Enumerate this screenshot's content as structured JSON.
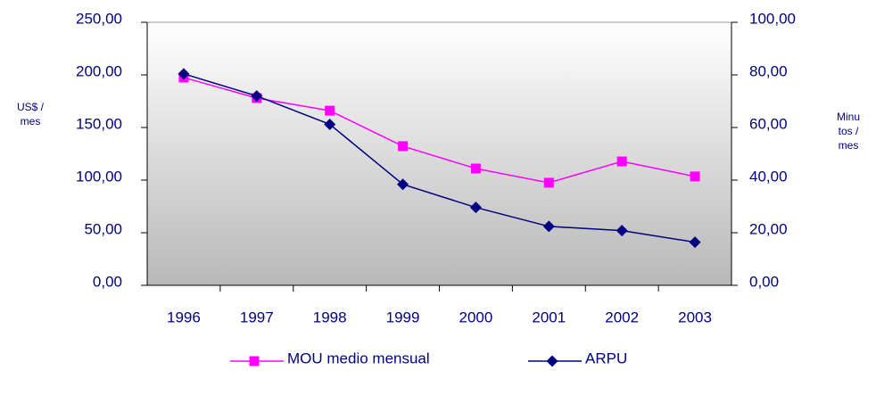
{
  "chart_data": {
    "type": "line",
    "categories": [
      "1996",
      "1997",
      "1998",
      "1999",
      "2000",
      "2001",
      "2002",
      "2003"
    ],
    "series": [
      {
        "name": "MOU medio mensual",
        "color": "#ff00ff",
        "marker": "square",
        "axis": "y2",
        "values": [
          79,
          71.2,
          66.4,
          52.9,
          44.4,
          39,
          47.1,
          41.4
        ]
      },
      {
        "name": "ARPU",
        "color": "#000080",
        "marker": "diamond",
        "values": [
          201,
          180,
          153,
          96,
          74,
          56,
          52,
          41
        ]
      }
    ],
    "y_label": [
      "US$ /",
      "mes"
    ],
    "y2_label": [
      "Minu",
      "tos /",
      "mes"
    ],
    "ylim": [
      0,
      250
    ],
    "yticks": [
      {
        "value": 0,
        "label": "0,00"
      },
      {
        "value": 50,
        "label": "50,00"
      },
      {
        "value": 100,
        "label": "100,00"
      },
      {
        "value": 150,
        "label": "150,00"
      },
      {
        "value": 200,
        "label": "200,00"
      },
      {
        "value": 250,
        "label": "250,00"
      }
    ],
    "y2lim": [
      0,
      100
    ],
    "y2ticks": [
      {
        "value": 0,
        "label": "0,00"
      },
      {
        "value": 20,
        "label": "20,00"
      },
      {
        "value": 40,
        "label": "40,00"
      },
      {
        "value": 60,
        "label": "60,00"
      },
      {
        "value": 80,
        "label": "80,00"
      },
      {
        "value": 100,
        "label": "100,00"
      }
    ],
    "legend": "bottom"
  }
}
